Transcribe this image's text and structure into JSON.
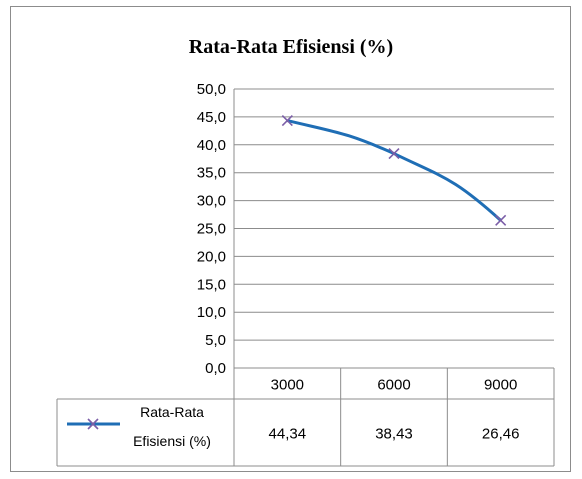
{
  "chart_data": {
    "type": "line",
    "title": "Rata-Rata Efisiensi (%)",
    "categories": [
      "3000",
      "6000",
      "9000"
    ],
    "series": [
      {
        "name": "Rata-Rata Efisiensi (%)",
        "values": [
          44.34,
          38.43,
          26.46
        ],
        "value_labels": [
          "44,34",
          "38,43",
          "26,46"
        ],
        "color": "#1f6eb5",
        "marker": "x",
        "marker_color": "#7b5ea7"
      }
    ],
    "ylim": [
      0,
      50
    ],
    "yticks": [
      "0,0",
      "5,0",
      "10,0",
      "15,0",
      "20,0",
      "25,0",
      "30,0",
      "35,0",
      "40,0",
      "45,0",
      "50,0"
    ],
    "grid": true,
    "legend": "data-table",
    "data_table": true
  }
}
